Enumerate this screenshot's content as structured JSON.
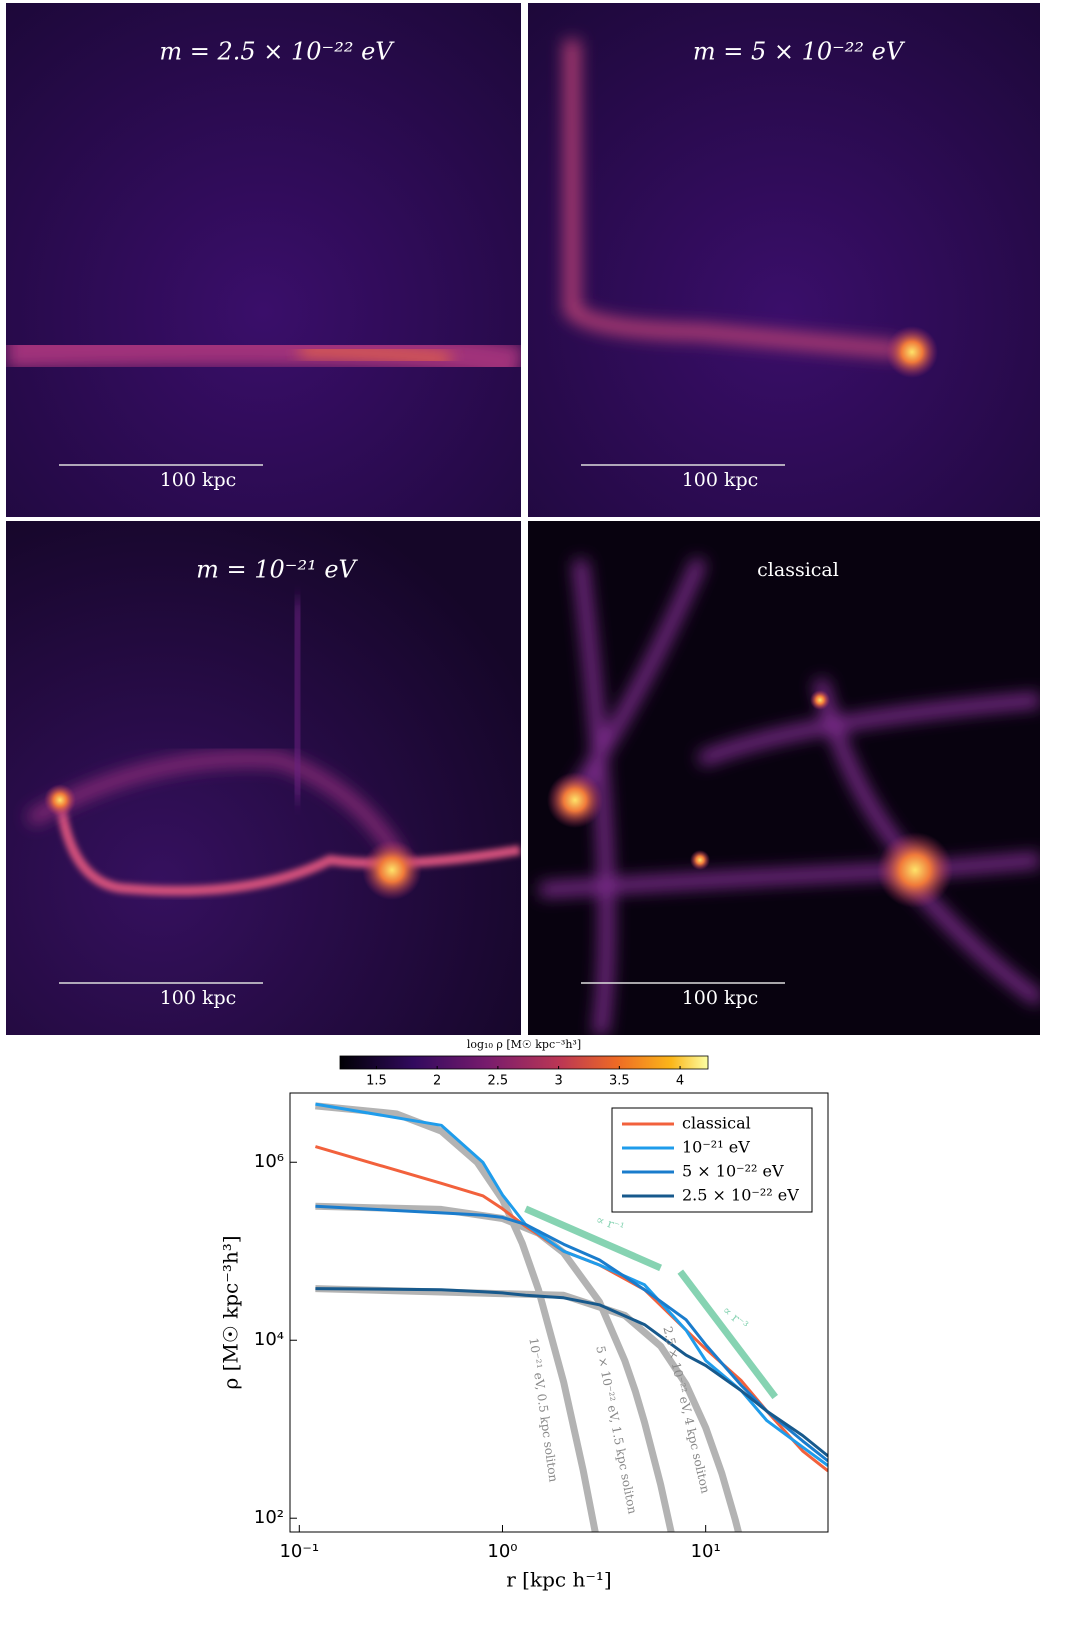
{
  "panels": [
    {
      "title": "m = 2.5 × 10⁻²² eV",
      "scale_bar": "100 kpc"
    },
    {
      "title": "m = 5 × 10⁻²² eV",
      "scale_bar": "100 kpc"
    },
    {
      "title": "m = 10⁻²¹ eV",
      "scale_bar": "100 kpc"
    },
    {
      "title": "classical",
      "scale_bar": "100 kpc"
    }
  ],
  "colorbar": {
    "label": "log₁₀ ρ [M☉ kpc⁻³h³]",
    "lim": [
      1.2,
      4.23
    ],
    "ticks": [
      1.5,
      2,
      2.5,
      3,
      3.5,
      4
    ]
  },
  "chart_data": {
    "type": "line",
    "x_label": "r [kpc h⁻¹]",
    "y_label": "ρ [M☉ kpc⁻³h³]",
    "xlog": true,
    "ylog": true,
    "xlim": [
      0.09,
      40
    ],
    "ylim": [
      70,
      6000000
    ],
    "xticks": [
      {
        "value": 0.1,
        "label": "10⁻¹"
      },
      {
        "value": 1,
        "label": "10⁰"
      },
      {
        "value": 10,
        "label": "10¹"
      }
    ],
    "yticks": [
      {
        "value": 100,
        "label": "10²"
      },
      {
        "value": 10000,
        "label": "10⁴"
      },
      {
        "value": 1000000,
        "label": "10⁶"
      }
    ],
    "legend": "upper right",
    "series": [
      {
        "name": "classical",
        "color": "#f2613c",
        "x": [
          0.12,
          0.5,
          0.8,
          1,
          1.3,
          2,
          3,
          5,
          8,
          10,
          15,
          20,
          30,
          40
        ],
        "values": [
          1500000,
          580000,
          420000,
          300000,
          190000,
          100000,
          70000,
          37000,
          13000,
          8000,
          3500,
          1600,
          570,
          340
        ]
      },
      {
        "name": "10⁻²¹ eV",
        "color": "#1f9ceb",
        "x": [
          0.12,
          0.5,
          0.8,
          1,
          1.3,
          2,
          3,
          5,
          8,
          10,
          15,
          20,
          30,
          40
        ],
        "values": [
          4500000,
          2600000,
          1000000,
          430000,
          200000,
          100000,
          70000,
          42000,
          13000,
          5900,
          2700,
          1250,
          630,
          390
        ]
      },
      {
        "name": "5 × 10⁻²² eV",
        "color": "#1a7ccc",
        "x": [
          0.12,
          0.5,
          0.8,
          1,
          1.3,
          2,
          3,
          5,
          8,
          10,
          15,
          20,
          30,
          40
        ],
        "values": [
          320000,
          270000,
          255000,
          240000,
          200000,
          120000,
          80000,
          37000,
          17000,
          8900,
          3100,
          1600,
          740,
          440
        ]
      },
      {
        "name": "2.5 × 10⁻²² eV",
        "color": "#17598c",
        "x": [
          0.12,
          0.5,
          0.8,
          1,
          1.3,
          2,
          3,
          5,
          8,
          10,
          15,
          20,
          30,
          40
        ],
        "values": [
          38000,
          37000,
          35000,
          34000,
          32000,
          30000,
          25000,
          15000,
          6800,
          5200,
          2700,
          1600,
          850,
          500
        ]
      }
    ],
    "solitons": [
      {
        "label": "10⁻²¹ eV, 0.5 kpc soliton",
        "color": "#b3b3b3",
        "x": [
          0.12,
          0.3,
          0.5,
          0.75,
          1,
          1.25,
          1.5,
          2,
          2.5,
          3
        ],
        "values": [
          4300000,
          3500000,
          2240000,
          1000000,
          380000,
          123000,
          37500,
          3400,
          340,
          40
        ]
      },
      {
        "label": "5 × 10⁻²² eV, 1.5 kpc soliton",
        "color": "#b3b3b3",
        "x": [
          0.12,
          0.5,
          1,
          1.5,
          2,
          3,
          4,
          4.5,
          5,
          6,
          7.5
        ],
        "values": [
          320000,
          295000,
          233000,
          160000,
          96000,
          27000,
          5900,
          2700,
          1200,
          240,
          24
        ]
      },
      {
        "label": "2.5 × 10⁻²² eV, 4 kpc soliton",
        "color": "#b3b3b3",
        "x": [
          0.12,
          2,
          4,
          6,
          8,
          10,
          12,
          14,
          16
        ],
        "values": [
          38000,
          32000,
          19000,
          8600,
          3200,
          1040,
          320,
          95,
          29
        ]
      }
    ],
    "guides": [
      {
        "label": "∝ r⁻¹",
        "color": "#86d3b2",
        "x": [
          1.3,
          6
        ],
        "values": [
          300000,
          65000
        ]
      },
      {
        "label": "∝ r⁻³",
        "color": "#86d3b2",
        "x": [
          7.5,
          22
        ],
        "values": [
          59000,
          2300
        ]
      }
    ]
  }
}
